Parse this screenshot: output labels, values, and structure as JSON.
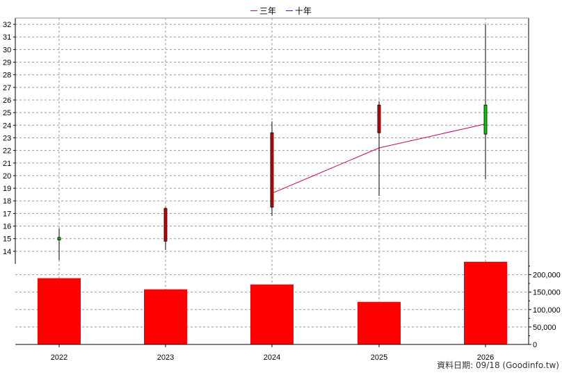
{
  "legend": {
    "items": [
      {
        "label": "三年",
        "color": "#cc0066"
      },
      {
        "label": "十年",
        "color": "#6600cc"
      }
    ]
  },
  "footer": {
    "text": "資料日期: 09/18  (Goodinfo.tw)"
  },
  "chart_data": {
    "type": "candlestick",
    "categories": [
      "2022",
      "2023",
      "2024",
      "2025",
      "2026"
    ],
    "price_axis": {
      "ylim": [
        13,
        32.5
      ],
      "ticks": [
        14,
        15,
        16,
        17,
        18,
        19,
        20,
        21,
        22,
        23,
        24,
        25,
        26,
        27,
        28,
        29,
        30,
        31,
        32
      ]
    },
    "volume_axis": {
      "ylim": [
        0,
        235000
      ],
      "ticks": [
        0,
        50000,
        100000,
        150000,
        200000
      ],
      "tick_labels": [
        "0",
        "50,000",
        "100,000",
        "150,000",
        "200,000"
      ]
    },
    "grid": true,
    "legend_position": "top-center",
    "candles": [
      {
        "x": "2022",
        "open": 14.9,
        "close": 15.1,
        "high": 15.8,
        "low": 13.3,
        "color": "#00cc00"
      },
      {
        "x": "2023",
        "open": 17.4,
        "close": 14.8,
        "high": 17.5,
        "low": 14.1,
        "color": "#cc0000"
      },
      {
        "x": "2024",
        "open": 23.4,
        "close": 17.5,
        "high": 24.3,
        "low": 16.8,
        "color": "#cc0000"
      },
      {
        "x": "2025",
        "open": 25.6,
        "close": 23.4,
        "high": 25.9,
        "low": 18.4,
        "color": "#cc0000"
      },
      {
        "x": "2026",
        "open": 23.3,
        "close": 25.6,
        "high": 32.0,
        "low": 19.7,
        "color": "#00cc00"
      }
    ],
    "series": [
      {
        "name": "三年",
        "color": "#cc0066",
        "points": [
          [
            "2024",
            18.6
          ],
          [
            "2025",
            22.2
          ],
          [
            "2026",
            24.1
          ]
        ]
      }
    ],
    "volume": {
      "color": "#ff0000",
      "values": [
        190000,
        158000,
        172000,
        122000,
        237000
      ]
    }
  }
}
